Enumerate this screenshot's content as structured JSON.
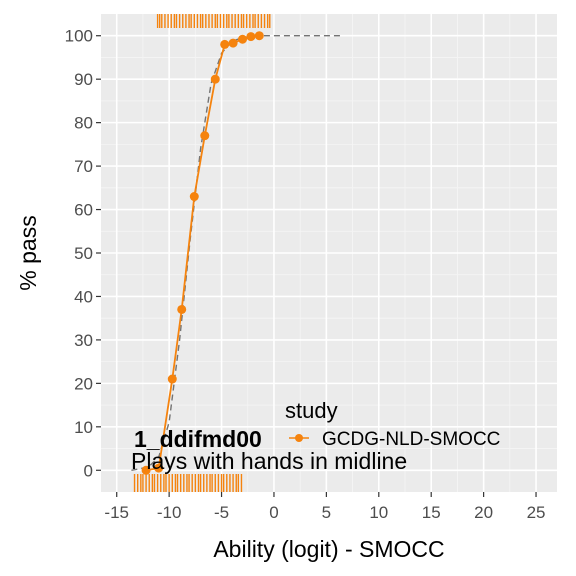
{
  "chart_data": {
    "type": "line",
    "xlabel": "Ability (logit) - SMOCC",
    "ylabel": "% pass",
    "xlim": [
      -16.5,
      27
    ],
    "ylim": [
      -5,
      105
    ],
    "x_ticks": [
      -15,
      -10,
      -5,
      0,
      5,
      10,
      15,
      20,
      25
    ],
    "y_ticks": [
      0,
      10,
      20,
      30,
      40,
      50,
      60,
      70,
      80,
      90,
      100
    ],
    "grid": true,
    "legend": {
      "title": "study",
      "placement": "bottom-right-inside"
    },
    "annotation": {
      "code": "1_ddifmd00",
      "label": "Plays with hands in midline"
    },
    "series": [
      {
        "name": "GCDG-NLD-SMOCC",
        "color": "#f5830e",
        "points": [
          {
            "x": -12.2,
            "y": 0
          },
          {
            "x": -11.0,
            "y": 0.5
          },
          {
            "x": -9.7,
            "y": 21
          },
          {
            "x": -8.8,
            "y": 37
          },
          {
            "x": -7.6,
            "y": 63
          },
          {
            "x": -6.6,
            "y": 77
          },
          {
            "x": -5.6,
            "y": 90
          },
          {
            "x": -4.7,
            "y": 98
          },
          {
            "x": -3.9,
            "y": 98.3
          },
          {
            "x": -3.0,
            "y": 99.2
          },
          {
            "x": -2.2,
            "y": 99.8
          },
          {
            "x": -1.4,
            "y": 100
          }
        ]
      }
    ],
    "reference_curve": [
      {
        "x": -13.6,
        "y": 0
      },
      {
        "x": -12.0,
        "y": 0.7
      },
      {
        "x": -11.0,
        "y": 3
      },
      {
        "x": -10.0,
        "y": 11
      },
      {
        "x": -9.0,
        "y": 30
      },
      {
        "x": -8.0,
        "y": 53
      },
      {
        "x": -7.0,
        "y": 74
      },
      {
        "x": -6.0,
        "y": 89
      },
      {
        "x": -5.0,
        "y": 96
      },
      {
        "x": -4.0,
        "y": 98.7
      },
      {
        "x": -3.0,
        "y": 99.6
      },
      {
        "x": -1.0,
        "y": 100
      },
      {
        "x": 6.5,
        "y": 100
      }
    ],
    "rug_top_x": [
      -11.1,
      -10.9,
      -10.7,
      -10.4,
      -10.1,
      -9.8,
      -9.5,
      -9.3,
      -9.0,
      -8.7,
      -8.4,
      -8.1,
      -7.9,
      -7.6,
      -7.3,
      -7.0,
      -6.8,
      -6.5,
      -6.2,
      -5.9,
      -5.6,
      -5.4,
      -5.1,
      -4.8,
      -4.5,
      -4.3,
      -4.0,
      -3.7,
      -3.4,
      -3.1,
      -2.9,
      -2.6,
      -2.3,
      -2.0,
      -1.8,
      -1.5,
      -1.2,
      -0.9,
      -0.6,
      -0.4
    ],
    "rug_bottom_x": [
      -13.3,
      -13.0,
      -12.7,
      -12.5,
      -12.2,
      -11.9,
      -11.6,
      -11.4,
      -11.1,
      -10.8,
      -10.5,
      -10.3,
      -10.0,
      -9.7,
      -9.4,
      -9.2,
      -8.9,
      -8.6,
      -8.3,
      -8.1,
      -7.8,
      -7.5,
      -7.2,
      -7.0,
      -6.7,
      -6.4,
      -6.1,
      -5.9,
      -5.6,
      -5.3,
      -5.0,
      -4.8,
      -4.5,
      -4.2,
      -3.9,
      -3.6,
      -3.4,
      -3.1
    ]
  }
}
